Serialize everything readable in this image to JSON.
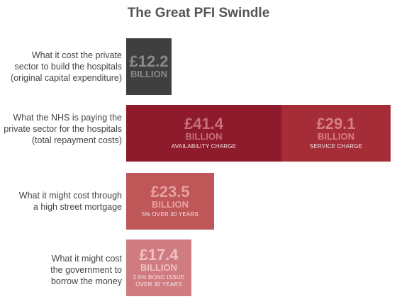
{
  "chart_data": {
    "type": "bar",
    "orientation": "horizontal",
    "stacked": true,
    "title": "The Great PFI Swindle",
    "unit": "BILLION",
    "categories": [
      "What it cost the private\nsector to build the hospitals\n(original capital expenditure)",
      "What the NHS is paying the\nprivate sector for the hospitals\n(total repayment costs)",
      "What it might cost through\na high street mortgage",
      "What it might cost\nthe government to\nborrow the money"
    ],
    "bars": [
      {
        "segments": [
          {
            "value": 12.2,
            "label": "£12.2",
            "note": "",
            "color": "#3f3f3f",
            "text_color": "#8a8a8a"
          }
        ]
      },
      {
        "segments": [
          {
            "value": 41.4,
            "label": "£41.4",
            "note": "AVAILABILITY CHARGE",
            "color": "#8e1b2b",
            "text_color": "#c76f7b"
          },
          {
            "value": 29.1,
            "label": "£29.1",
            "note": "SERVICE CHARGE",
            "color": "#a52d37",
            "text_color": "#d77f87"
          }
        ]
      },
      {
        "segments": [
          {
            "value": 23.5,
            "label": "£23.5",
            "note": "5% OVER 30 YEARS",
            "color": "#bf5658",
            "text_color": "#e7a0a2"
          }
        ]
      },
      {
        "segments": [
          {
            "value": 17.4,
            "label": "£17.4",
            "note": "2.5% BOND ISSUE\nOVER 30 YEARS",
            "color": "#cf7b80",
            "text_color": "#f0c1c4"
          }
        ]
      }
    ]
  }
}
